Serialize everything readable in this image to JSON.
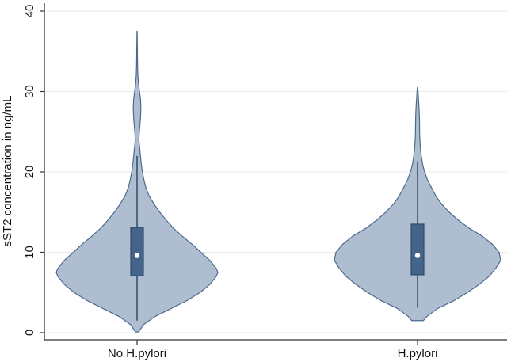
{
  "chart_data": {
    "type": "violin",
    "ylabel": "sST2 concentration in ng/mL",
    "xlabel": "",
    "ylim": [
      0,
      40
    ],
    "yticks": [
      0,
      10,
      20,
      30,
      40
    ],
    "grid": true,
    "categories": [
      "No H.pylori",
      "H.pylori"
    ],
    "groups": [
      {
        "name": "No H.pylori",
        "min": 0.1,
        "q1": 7.1,
        "median": 9.6,
        "q3": 13.1,
        "max": 37.5,
        "whisker_low": 1.5,
        "whisker_high": 22.0,
        "density": [
          [
            0.1,
            0.02
          ],
          [
            1,
            0.08
          ],
          [
            2,
            0.22
          ],
          [
            3,
            0.42
          ],
          [
            4,
            0.62
          ],
          [
            5,
            0.78
          ],
          [
            6,
            0.9
          ],
          [
            7,
            0.98
          ],
          [
            7.5,
            1.0
          ],
          [
            8,
            0.98
          ],
          [
            9,
            0.9
          ],
          [
            10,
            0.79
          ],
          [
            11,
            0.68
          ],
          [
            12,
            0.56
          ],
          [
            13,
            0.45
          ],
          [
            14,
            0.36
          ],
          [
            15,
            0.28
          ],
          [
            16,
            0.21
          ],
          [
            17,
            0.15
          ],
          [
            18,
            0.11
          ],
          [
            19,
            0.085
          ],
          [
            20,
            0.066
          ],
          [
            21,
            0.052
          ],
          [
            22,
            0.042
          ],
          [
            23,
            0.032
          ],
          [
            24,
            0.022
          ],
          [
            25,
            0.028
          ],
          [
            26,
            0.037
          ],
          [
            27,
            0.044
          ],
          [
            28,
            0.047
          ],
          [
            29,
            0.043
          ],
          [
            30,
            0.03
          ],
          [
            31,
            0.018
          ],
          [
            32,
            0.01
          ],
          [
            33,
            0.007
          ],
          [
            34,
            0.005
          ],
          [
            35,
            0.004
          ],
          [
            36,
            0.003
          ],
          [
            37,
            0.002
          ],
          [
            37.5,
            0.001
          ]
        ]
      },
      {
        "name": "H.pylori",
        "min": 1.5,
        "q1": 7.2,
        "median": 9.6,
        "q3": 13.5,
        "max": 30.5,
        "whisker_low": 3.1,
        "whisker_high": 21.3,
        "density": [
          [
            1.5,
            0.07
          ],
          [
            2,
            0.11
          ],
          [
            3,
            0.24
          ],
          [
            4,
            0.44
          ],
          [
            5,
            0.6
          ],
          [
            6,
            0.74
          ],
          [
            7,
            0.86
          ],
          [
            8,
            0.94
          ],
          [
            9,
            1.0
          ],
          [
            10,
            0.98
          ],
          [
            11,
            0.9
          ],
          [
            12,
            0.78
          ],
          [
            13,
            0.62
          ],
          [
            14,
            0.49
          ],
          [
            15,
            0.38
          ],
          [
            16,
            0.29
          ],
          [
            17,
            0.22
          ],
          [
            18,
            0.17
          ],
          [
            19,
            0.12
          ],
          [
            20,
            0.085
          ],
          [
            21,
            0.06
          ],
          [
            22,
            0.045
          ],
          [
            23,
            0.035
          ],
          [
            24,
            0.028
          ],
          [
            25,
            0.025
          ],
          [
            26,
            0.024
          ],
          [
            27,
            0.022
          ],
          [
            28,
            0.018
          ],
          [
            29,
            0.012
          ],
          [
            30,
            0.006
          ],
          [
            30.5,
            0.002
          ]
        ]
      }
    ],
    "colors": {
      "violin_fill": "#aebdd0",
      "violin_stroke": "#4d6a8e",
      "box_fill": "#45648a",
      "box_stroke": "#2f4a6b",
      "median_dot": "#ffffff",
      "grid": "#e3ebeb",
      "axis": "#333333"
    }
  }
}
